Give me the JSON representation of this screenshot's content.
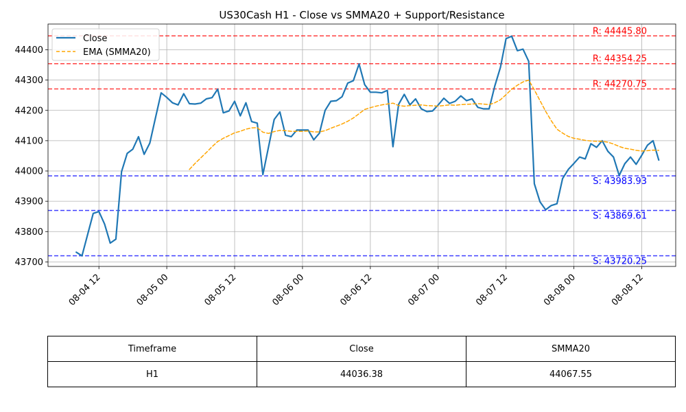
{
  "chart_data": {
    "type": "line",
    "title": "US30Cash H1 - Close vs SMMA20 + Support/Resistance",
    "xlabel": "",
    "ylabel": "",
    "x_range": [
      "2025-08-04 03:00",
      "2025-08-08 18:00"
    ],
    "ylim": [
      43685,
      44485
    ],
    "y_ticks": [
      43700,
      43800,
      43900,
      44000,
      44100,
      44200,
      44300,
      44400
    ],
    "x_ticks": [
      {
        "x": "2025-08-04 12:00",
        "label": "08-04 12"
      },
      {
        "x": "2025-08-05 00:00",
        "label": "08-05 00"
      },
      {
        "x": "2025-08-05 12:00",
        "label": "08-05 12"
      },
      {
        "x": "2025-08-06 00:00",
        "label": "08-06 00"
      },
      {
        "x": "2025-08-06 12:00",
        "label": "08-06 12"
      },
      {
        "x": "2025-08-07 00:00",
        "label": "08-07 00"
      },
      {
        "x": "2025-08-07 12:00",
        "label": "08-07 12"
      },
      {
        "x": "2025-08-08 00:00",
        "label": "08-08 00"
      },
      {
        "x": "2025-08-08 12:00",
        "label": "08-08 12"
      }
    ],
    "grid": true,
    "legend_position": "top-left",
    "series": [
      {
        "name": "Close",
        "color": "#1f77b4",
        "style": "solid",
        "points": [
          [
            "2025-08-04 08:00",
            43732
          ],
          [
            "2025-08-04 09:00",
            43720
          ],
          [
            "2025-08-04 10:00",
            43790
          ],
          [
            "2025-08-04 11:00",
            43860
          ],
          [
            "2025-08-04 12:00",
            43866
          ],
          [
            "2025-08-04 13:00",
            43825
          ],
          [
            "2025-08-04 14:00",
            43762
          ],
          [
            "2025-08-04 15:00",
            43775
          ],
          [
            "2025-08-04 16:00",
            43998
          ],
          [
            "2025-08-04 17:00",
            44058
          ],
          [
            "2025-08-04 18:00",
            44072
          ],
          [
            "2025-08-04 19:00",
            44113
          ],
          [
            "2025-08-04 20:00",
            44055
          ],
          [
            "2025-08-04 21:00",
            44092
          ],
          [
            "2025-08-04 22:00",
            44175
          ],
          [
            "2025-08-04 23:00",
            44258
          ],
          [
            "2025-08-05 00:00",
            44243
          ],
          [
            "2025-08-05 01:00",
            44225
          ],
          [
            "2025-08-05 02:00",
            44218
          ],
          [
            "2025-08-05 03:00",
            44255
          ],
          [
            "2025-08-05 04:00",
            44222
          ],
          [
            "2025-08-05 05:00",
            44221
          ],
          [
            "2025-08-05 06:00",
            44224
          ],
          [
            "2025-08-05 07:00",
            44238
          ],
          [
            "2025-08-05 08:00",
            44242
          ],
          [
            "2025-08-05 09:00",
            44270
          ],
          [
            "2025-08-05 10:00",
            44192
          ],
          [
            "2025-08-05 11:00",
            44198
          ],
          [
            "2025-08-05 12:00",
            44230
          ],
          [
            "2025-08-05 13:00",
            44182
          ],
          [
            "2025-08-05 14:00",
            44225
          ],
          [
            "2025-08-05 15:00",
            44163
          ],
          [
            "2025-08-05 16:00",
            44158
          ],
          [
            "2025-08-05 17:00",
            43988
          ],
          [
            "2025-08-05 18:00",
            44080
          ],
          [
            "2025-08-05 19:00",
            44170
          ],
          [
            "2025-08-05 20:00",
            44195
          ],
          [
            "2025-08-05 21:00",
            44118
          ],
          [
            "2025-08-05 22:00",
            44113
          ],
          [
            "2025-08-05 23:00",
            44135
          ],
          [
            "2025-08-06 00:00",
            44135
          ],
          [
            "2025-08-06 01:00",
            44135
          ],
          [
            "2025-08-06 02:00",
            44103
          ],
          [
            "2025-08-06 03:00",
            44125
          ],
          [
            "2025-08-06 04:00",
            44200
          ],
          [
            "2025-08-06 05:00",
            44230
          ],
          [
            "2025-08-06 06:00",
            44232
          ],
          [
            "2025-08-06 07:00",
            44245
          ],
          [
            "2025-08-06 08:00",
            44290
          ],
          [
            "2025-08-06 09:00",
            44298
          ],
          [
            "2025-08-06 10:00",
            44353
          ],
          [
            "2025-08-06 11:00",
            44285
          ],
          [
            "2025-08-06 12:00",
            44260
          ],
          [
            "2025-08-06 13:00",
            44260
          ],
          [
            "2025-08-06 14:00",
            44258
          ],
          [
            "2025-08-06 15:00",
            44266
          ],
          [
            "2025-08-06 16:00",
            44080
          ],
          [
            "2025-08-06 17:00",
            44220
          ],
          [
            "2025-08-06 18:00",
            44253
          ],
          [
            "2025-08-06 19:00",
            44218
          ],
          [
            "2025-08-06 20:00",
            44238
          ],
          [
            "2025-08-06 21:00",
            44205
          ],
          [
            "2025-08-06 22:00",
            44196
          ],
          [
            "2025-08-06 23:00",
            44198
          ],
          [
            "2025-08-07 00:00",
            44218
          ],
          [
            "2025-08-07 01:00",
            44240
          ],
          [
            "2025-08-07 02:00",
            44223
          ],
          [
            "2025-08-07 03:00",
            44230
          ],
          [
            "2025-08-07 04:00",
            44248
          ],
          [
            "2025-08-07 05:00",
            44232
          ],
          [
            "2025-08-07 06:00",
            44238
          ],
          [
            "2025-08-07 07:00",
            44210
          ],
          [
            "2025-08-07 08:00",
            44205
          ],
          [
            "2025-08-07 09:00",
            44205
          ],
          [
            "2025-08-07 10:00",
            44280
          ],
          [
            "2025-08-07 11:00",
            44342
          ],
          [
            "2025-08-07 12:00",
            44437
          ],
          [
            "2025-08-07 13:00",
            44445
          ],
          [
            "2025-08-07 14:00",
            44397
          ],
          [
            "2025-08-07 15:00",
            44402
          ],
          [
            "2025-08-07 16:00",
            44362
          ],
          [
            "2025-08-07 17:00",
            43958
          ],
          [
            "2025-08-07 18:00",
            43898
          ],
          [
            "2025-08-07 19:00",
            43872
          ],
          [
            "2025-08-07 20:00",
            43886
          ],
          [
            "2025-08-07 21:00",
            43892
          ],
          [
            "2025-08-07 22:00",
            43975
          ],
          [
            "2025-08-07 23:00",
            44005
          ],
          [
            "2025-08-08 00:00",
            44025
          ],
          [
            "2025-08-08 01:00",
            44046
          ],
          [
            "2025-08-08 02:00",
            44040
          ],
          [
            "2025-08-08 03:00",
            44090
          ],
          [
            "2025-08-08 04:00",
            44078
          ],
          [
            "2025-08-08 05:00",
            44100
          ],
          [
            "2025-08-08 06:00",
            44065
          ],
          [
            "2025-08-08 07:00",
            44046
          ],
          [
            "2025-08-08 08:00",
            43985
          ],
          [
            "2025-08-08 09:00",
            44024
          ],
          [
            "2025-08-08 10:00",
            44046
          ],
          [
            "2025-08-08 11:00",
            44022
          ],
          [
            "2025-08-08 12:00",
            44052
          ],
          [
            "2025-08-08 13:00",
            44085
          ],
          [
            "2025-08-08 14:00",
            44100
          ],
          [
            "2025-08-08 15:00",
            44036
          ]
        ]
      },
      {
        "name": "EMA (SMMA20)",
        "color": "#ffa500",
        "style": "dashed",
        "points": [
          [
            "2025-08-05 04:00",
            44005
          ],
          [
            "2025-08-05 05:00",
            44025
          ],
          [
            "2025-08-05 06:00",
            44043
          ],
          [
            "2025-08-05 07:00",
            44061
          ],
          [
            "2025-08-05 08:00",
            44080
          ],
          [
            "2025-08-05 09:00",
            44097
          ],
          [
            "2025-08-05 10:00",
            44108
          ],
          [
            "2025-08-05 11:00",
            44117
          ],
          [
            "2025-08-05 12:00",
            44126
          ],
          [
            "2025-08-05 13:00",
            44131
          ],
          [
            "2025-08-05 14:00",
            44138
          ],
          [
            "2025-08-05 15:00",
            44142
          ],
          [
            "2025-08-05 16:00",
            44143
          ],
          [
            "2025-08-05 17:00",
            44128
          ],
          [
            "2025-08-05 18:00",
            44124
          ],
          [
            "2025-08-05 19:00",
            44130
          ],
          [
            "2025-08-05 20:00",
            44134
          ],
          [
            "2025-08-05 21:00",
            44133
          ],
          [
            "2025-08-05 22:00",
            44131
          ],
          [
            "2025-08-05 23:00",
            44131
          ],
          [
            "2025-08-06 00:00",
            44131
          ],
          [
            "2025-08-06 01:00",
            44132
          ],
          [
            "2025-08-06 02:00",
            44129
          ],
          [
            "2025-08-06 03:00",
            44129
          ],
          [
            "2025-08-06 04:00",
            44133
          ],
          [
            "2025-08-06 05:00",
            44141
          ],
          [
            "2025-08-06 06:00",
            44148
          ],
          [
            "2025-08-06 07:00",
            44155
          ],
          [
            "2025-08-06 08:00",
            44164
          ],
          [
            "2025-08-06 09:00",
            44175
          ],
          [
            "2025-08-06 10:00",
            44189
          ],
          [
            "2025-08-06 11:00",
            44203
          ],
          [
            "2025-08-06 12:00",
            44209
          ],
          [
            "2025-08-06 13:00",
            44214
          ],
          [
            "2025-08-06 14:00",
            44218
          ],
          [
            "2025-08-06 15:00",
            44221
          ],
          [
            "2025-08-06 16:00",
            44224
          ],
          [
            "2025-08-06 17:00",
            44216
          ],
          [
            "2025-08-06 18:00",
            44214
          ],
          [
            "2025-08-06 19:00",
            44216
          ],
          [
            "2025-08-06 20:00",
            44217
          ],
          [
            "2025-08-06 21:00",
            44218
          ],
          [
            "2025-08-06 22:00",
            44216
          ],
          [
            "2025-08-06 23:00",
            44215
          ],
          [
            "2025-08-07 00:00",
            44214
          ],
          [
            "2025-08-07 01:00",
            44216
          ],
          [
            "2025-08-07 02:00",
            44218
          ],
          [
            "2025-08-07 03:00",
            44217
          ],
          [
            "2025-08-07 04:00",
            44219
          ],
          [
            "2025-08-07 05:00",
            44220
          ],
          [
            "2025-08-07 06:00",
            44221
          ],
          [
            "2025-08-07 07:00",
            44222
          ],
          [
            "2025-08-07 08:00",
            44221
          ],
          [
            "2025-08-07 09:00",
            44219
          ],
          [
            "2025-08-07 10:00",
            44225
          ],
          [
            "2025-08-07 11:00",
            44235
          ],
          [
            "2025-08-07 12:00",
            44252
          ],
          [
            "2025-08-07 13:00",
            44270
          ],
          [
            "2025-08-07 14:00",
            44283
          ],
          [
            "2025-08-07 15:00",
            44294
          ],
          [
            "2025-08-07 16:00",
            44300
          ],
          [
            "2025-08-07 17:00",
            44268
          ],
          [
            "2025-08-07 18:00",
            44232
          ],
          [
            "2025-08-07 19:00",
            44197
          ],
          [
            "2025-08-07 20:00",
            44166
          ],
          [
            "2025-08-07 21:00",
            44138
          ],
          [
            "2025-08-07 22:00",
            44125
          ],
          [
            "2025-08-07 23:00",
            44114
          ],
          [
            "2025-08-08 00:00",
            44108
          ],
          [
            "2025-08-08 01:00",
            44105
          ],
          [
            "2025-08-08 02:00",
            44101
          ],
          [
            "2025-08-08 03:00",
            44099
          ],
          [
            "2025-08-08 04:00",
            44098
          ],
          [
            "2025-08-08 05:00",
            44098
          ],
          [
            "2025-08-08 06:00",
            44095
          ],
          [
            "2025-08-08 07:00",
            44089
          ],
          [
            "2025-08-08 08:00",
            44081
          ],
          [
            "2025-08-08 09:00",
            44075
          ],
          [
            "2025-08-08 10:00",
            44072
          ],
          [
            "2025-08-08 11:00",
            44068
          ],
          [
            "2025-08-08 12:00",
            44066
          ],
          [
            "2025-08-08 13:00",
            44067
          ],
          [
            "2025-08-08 14:00",
            44069
          ],
          [
            "2025-08-08 15:00",
            44068
          ]
        ]
      }
    ],
    "levels": [
      {
        "kind": "resistance",
        "value": 44445.8,
        "label": "R: 44445.80",
        "color": "#ff0000"
      },
      {
        "kind": "resistance",
        "value": 44354.25,
        "label": "R: 44354.25",
        "color": "#ff0000"
      },
      {
        "kind": "resistance",
        "value": 44270.75,
        "label": "R: 44270.75",
        "color": "#ff0000"
      },
      {
        "kind": "support",
        "value": 43983.93,
        "label": "S: 43983.93",
        "color": "#0000ff"
      },
      {
        "kind": "support",
        "value": 43869.61,
        "label": "S: 43869.61",
        "color": "#0000ff"
      },
      {
        "kind": "support",
        "value": 43720.25,
        "label": "S: 43720.25",
        "color": "#0000ff"
      }
    ]
  },
  "table": {
    "headers": [
      "Timeframe",
      "Close",
      "SMMA20"
    ],
    "row": [
      "H1",
      "44036.38",
      "44067.55"
    ]
  }
}
